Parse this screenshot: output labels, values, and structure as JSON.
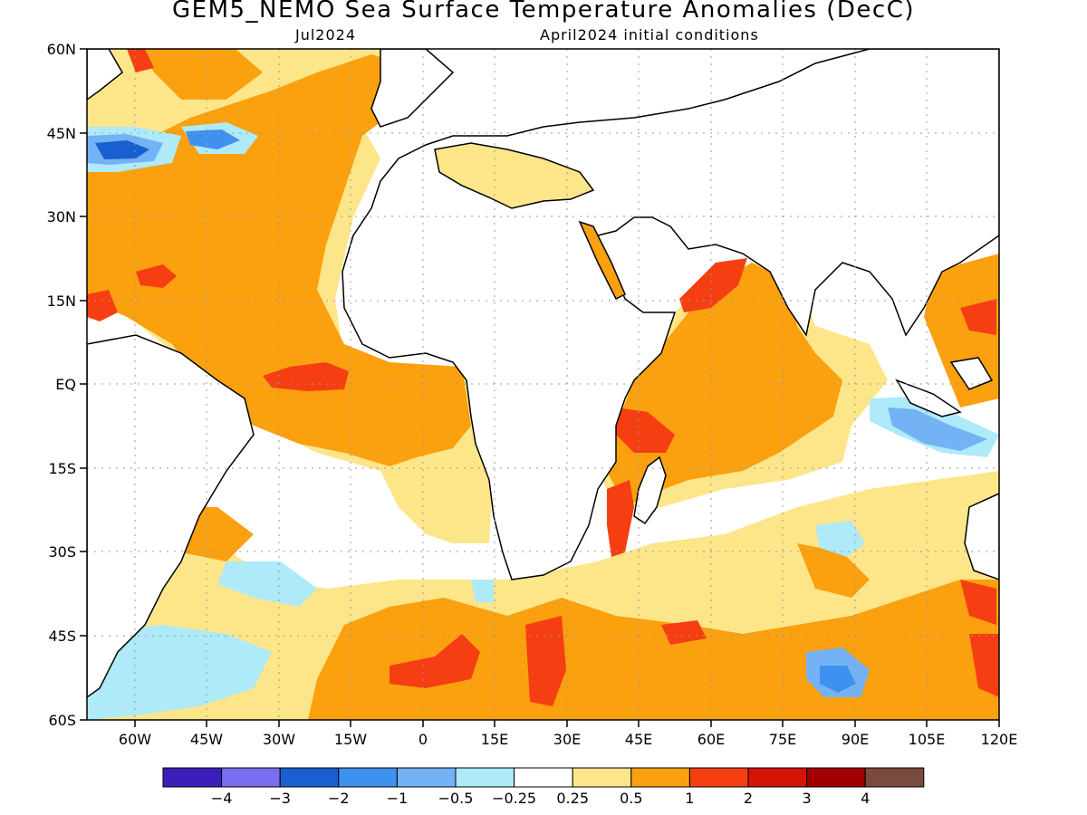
{
  "title": "GEM5_NEMO Sea Surface Temperature Anomalies (DecC)",
  "valid_month": "Jul2024",
  "initial_conditions": "April2024 initial conditions",
  "map": {
    "projection": "equirectangular",
    "lon_range": [
      -70,
      120
    ],
    "lat_range": [
      -60,
      60
    ],
    "lat_ticks": [
      "60N",
      "45N",
      "30N",
      "15N",
      "EQ",
      "15S",
      "30S",
      "45S",
      "60S"
    ],
    "lon_ticks": [
      "60W",
      "45W",
      "30W",
      "15W",
      "0",
      "15E",
      "30E",
      "45E",
      "60E",
      "75E",
      "90E",
      "105E",
      "120E"
    ],
    "land_color": "#ffffff",
    "grid": "dotted"
  },
  "colorbar": {
    "colors": [
      "#3b1fb8",
      "#7a6df0",
      "#1a5fd0",
      "#3f91f0",
      "#73b2f5",
      "#aeeaf8",
      "#ffffff",
      "#fde68a",
      "#fba00f",
      "#f53f12",
      "#d51405",
      "#a00000",
      "#7a4a3e"
    ],
    "labels": [
      "-4",
      "-3",
      "-2",
      "-1",
      "-0.5",
      "-0.25",
      "0.25",
      "0.5",
      "1",
      "2",
      "3",
      "4"
    ]
  }
}
